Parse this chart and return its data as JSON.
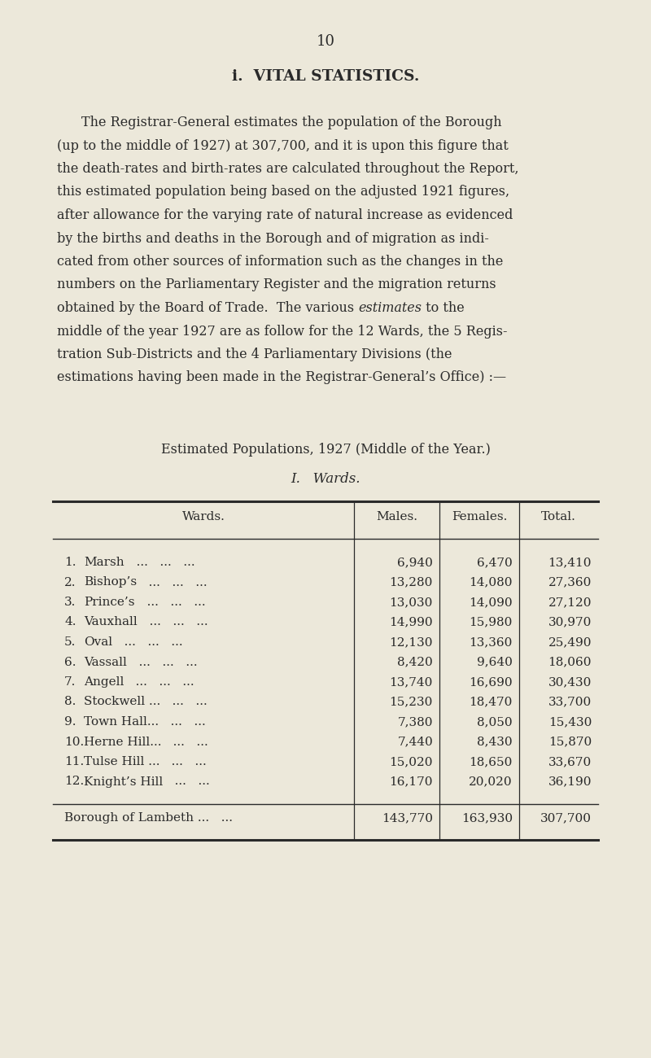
{
  "page_number": "10",
  "section_title": "i.  VITAL STATISTICS.",
  "paragraph_lines": [
    {
      "text": "The Registrar-General estimates the population of the Borough",
      "indent": true
    },
    {
      "text": "(up to the middle of 1927) at 307,700, and it is upon this figure that",
      "indent": false
    },
    {
      "text": "the death-rates and birth-rates are calculated throughout the Report,",
      "indent": false
    },
    {
      "text": "this estimated population being based on the adjusted 1921 figures,",
      "indent": false
    },
    {
      "text": "after allowance for the varying rate of natural increase as evidenced",
      "indent": false
    },
    {
      "text": "by the births and deaths in the Borough and of migration as indi-",
      "indent": false
    },
    {
      "text": "cated from other sources of information such as the changes in the",
      "indent": false
    },
    {
      "text": "numbers on the Parliamentary Register and the migration returns",
      "indent": false
    },
    {
      "text": "obtained by the Board of Trade.  The various ",
      "italic_suffix": "estimates",
      "after_italic": " to the",
      "indent": false
    },
    {
      "text": "middle of the year 1927 are as follow for the 12 Wards, the 5 Regis-",
      "indent": false
    },
    {
      "text": "tration Sub-Districts and the 4 Parliamentary Divisions (the",
      "indent": false
    },
    {
      "text": "estimations having been made in the Registrar-General’s Office) :—",
      "indent": false
    }
  ],
  "table_title": "Estimated Populations, 1927 (Middle of the Year.)",
  "table_subtitle": "I.   Wards.",
  "wards": [
    {
      "num": "1.",
      "name": "Marsh",
      "dots1": "...",
      "dots2": "...",
      "dots3": "...",
      "males": "6,940",
      "females": "6,470",
      "total": "13,410"
    },
    {
      "num": "2.",
      "name": "Bishop’s",
      "dots1": "...",
      "dots2": "...",
      "dots3": "...",
      "males": "13,280",
      "females": "14,080",
      "total": "27,360"
    },
    {
      "num": "3.",
      "name": "Prince’s",
      "dots1": "...",
      "dots2": "...",
      "dots3": "...",
      "males": "13,030",
      "females": "14,090",
      "total": "27,120"
    },
    {
      "num": "4.",
      "name": "Vauxhall",
      "dots1": "...",
      "dots2": "...",
      "dots3": "...",
      "males": "14,990",
      "females": "15,980",
      "total": "30,970"
    },
    {
      "num": "5.",
      "name": "Oval",
      "dots1": "...",
      "dots2": "...",
      "dots3": "...",
      "males": "12,130",
      "females": "13,360",
      "total": "25,490"
    },
    {
      "num": "6.",
      "name": "Vassall",
      "dots1": "...",
      "dots2": "...",
      "dots3": "...",
      "males": "8,420",
      "females": "9,640",
      "total": "18,060"
    },
    {
      "num": "7.",
      "name": "Angell",
      "dots1": "...",
      "dots2": "...",
      "dots3": "...",
      "males": "13,740",
      "females": "16,690",
      "total": "30,430"
    },
    {
      "num": "8.",
      "name": "Stockwell ...",
      "dots1": "...",
      "dots2": "...",
      "dots3": "",
      "males": "15,230",
      "females": "18,470",
      "total": "33,700"
    },
    {
      "num": "9.",
      "name": "Town Hall...",
      "dots1": "...",
      "dots2": "...",
      "dots3": "",
      "males": "7,380",
      "females": "8,050",
      "total": "15,430"
    },
    {
      "num": "10.",
      "name": "Herne Hill...",
      "dots1": "...",
      "dots2": "...",
      "dots3": "",
      "males": "7,440",
      "females": "8,430",
      "total": "15,870"
    },
    {
      "num": "11.",
      "name": "Tulse Hill ...",
      "dots1": "...",
      "dots2": "...",
      "dots3": "",
      "males": "15,020",
      "females": "18,650",
      "total": "33,670"
    },
    {
      "num": "12.",
      "name": "Knight’s Hill",
      "dots1": "...",
      "dots2": "...",
      "dots3": "",
      "males": "16,170",
      "females": "20,020",
      "total": "36,190"
    }
  ],
  "total_label": "Borough of Lambeth ...",
  "total_dots": "...",
  "total_males": "143,770",
  "total_females": "163,930",
  "total_total": "307,700",
  "bg_color": "#ece8da",
  "text_color": "#2a2a2a",
  "line_color": "#2a2a2a"
}
